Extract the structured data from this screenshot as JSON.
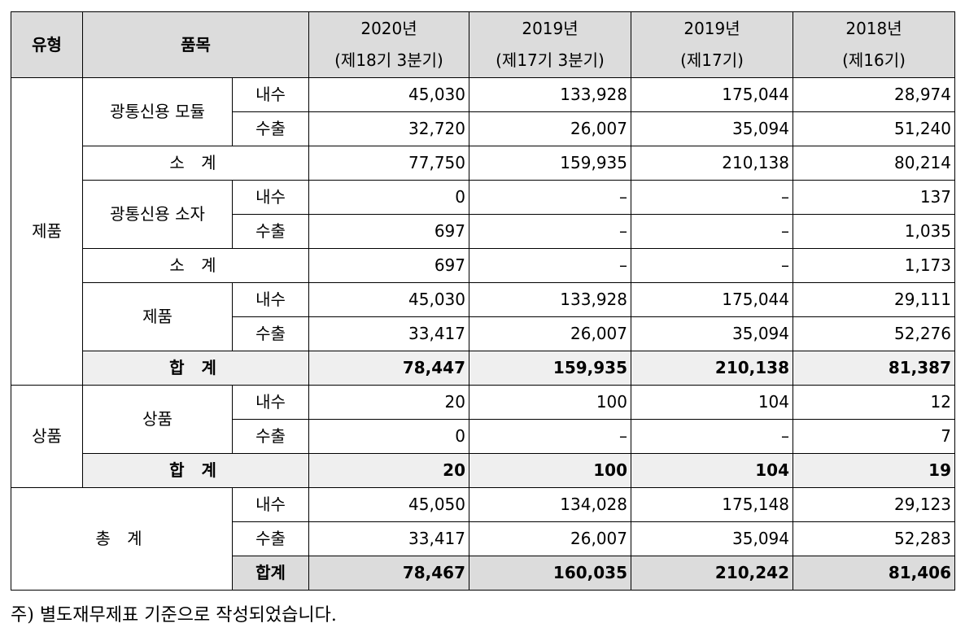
{
  "header": {
    "type": "유형",
    "item": "품목",
    "periods": [
      {
        "year": "2020년",
        "term": "(제18기 3분기)"
      },
      {
        "year": "2019년",
        "term": "(제17기 3분기)"
      },
      {
        "year": "2019년",
        "term": "(제17기)"
      },
      {
        "year": "2018년",
        "term": "(제16기)"
      }
    ]
  },
  "labels": {
    "domestic": "내수",
    "export": "수출",
    "subtotal": "소 계",
    "total": "합 계",
    "total_compact": "합계"
  },
  "product": {
    "type": "제품",
    "module": {
      "name": "광통신용 모듈",
      "domestic": [
        "45,030",
        "133,928",
        "175,044",
        "28,974"
      ],
      "export": [
        "32,720",
        "26,007",
        "35,094",
        "51,240"
      ],
      "subtotal": [
        "77,750",
        "159,935",
        "210,138",
        "80,214"
      ]
    },
    "element": {
      "name": "광통신용 소자",
      "domestic": [
        "0",
        "–",
        "–",
        "137"
      ],
      "export": [
        "697",
        "–",
        "–",
        "1,035"
      ],
      "subtotal": [
        "697",
        "–",
        "–",
        "1,173"
      ]
    },
    "product_sum": {
      "name": "제품",
      "domestic": [
        "45,030",
        "133,928",
        "175,044",
        "29,111"
      ],
      "export": [
        "33,417",
        "26,007",
        "35,094",
        "52,276"
      ]
    },
    "total": [
      "78,447",
      "159,935",
      "210,138",
      "81,387"
    ]
  },
  "goods": {
    "type": "상품",
    "name": "상품",
    "domestic": [
      "20",
      "100",
      "104",
      "12"
    ],
    "export": [
      "0",
      "–",
      "–",
      "7"
    ],
    "total": [
      "20",
      "100",
      "104",
      "19"
    ]
  },
  "grand": {
    "name": "총 계",
    "domestic": [
      "45,050",
      "134,028",
      "175,148",
      "29,123"
    ],
    "export": [
      "33,417",
      "26,007",
      "35,094",
      "52,283"
    ],
    "total": [
      "78,467",
      "160,035",
      "210,242",
      "81,406"
    ]
  },
  "footnote": "주) 별도재무제표 기준으로 작성되었습니다."
}
